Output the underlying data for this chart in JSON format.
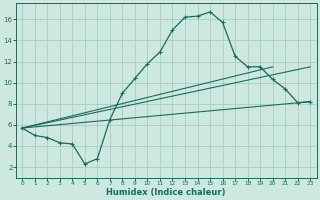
{
  "title": "",
  "xlabel": "Humidex (Indice chaleur)",
  "bg_color": "#cce8e0",
  "grid_color": "#aaccc4",
  "line_color": "#1a6b5a",
  "xlim": [
    -0.5,
    23.5
  ],
  "ylim": [
    1.0,
    17.5
  ],
  "yticks": [
    2,
    4,
    6,
    8,
    10,
    12,
    14,
    16
  ],
  "xticks": [
    0,
    1,
    2,
    3,
    4,
    5,
    6,
    7,
    8,
    9,
    10,
    11,
    12,
    13,
    14,
    15,
    16,
    17,
    18,
    19,
    20,
    21,
    22,
    23
  ],
  "series1_x": [
    0,
    1,
    2,
    3,
    4,
    5,
    6,
    7,
    8,
    9,
    10,
    11,
    12,
    13,
    14,
    15,
    16,
    17,
    18,
    19,
    20,
    21,
    22,
    23
  ],
  "series1_y": [
    5.7,
    5.0,
    4.8,
    4.3,
    4.2,
    2.3,
    2.8,
    6.5,
    9.0,
    10.4,
    11.8,
    12.9,
    15.0,
    16.2,
    16.3,
    16.7,
    15.7,
    12.5,
    11.5,
    11.5,
    10.3,
    9.4,
    8.1,
    8.2
  ],
  "line2_x": [
    0,
    23
  ],
  "line2_y": [
    5.7,
    8.2
  ],
  "line3_x": [
    0,
    23
  ],
  "line3_y": [
    5.7,
    11.5
  ],
  "line4_x": [
    0,
    20
  ],
  "line4_y": [
    5.7,
    11.5
  ]
}
